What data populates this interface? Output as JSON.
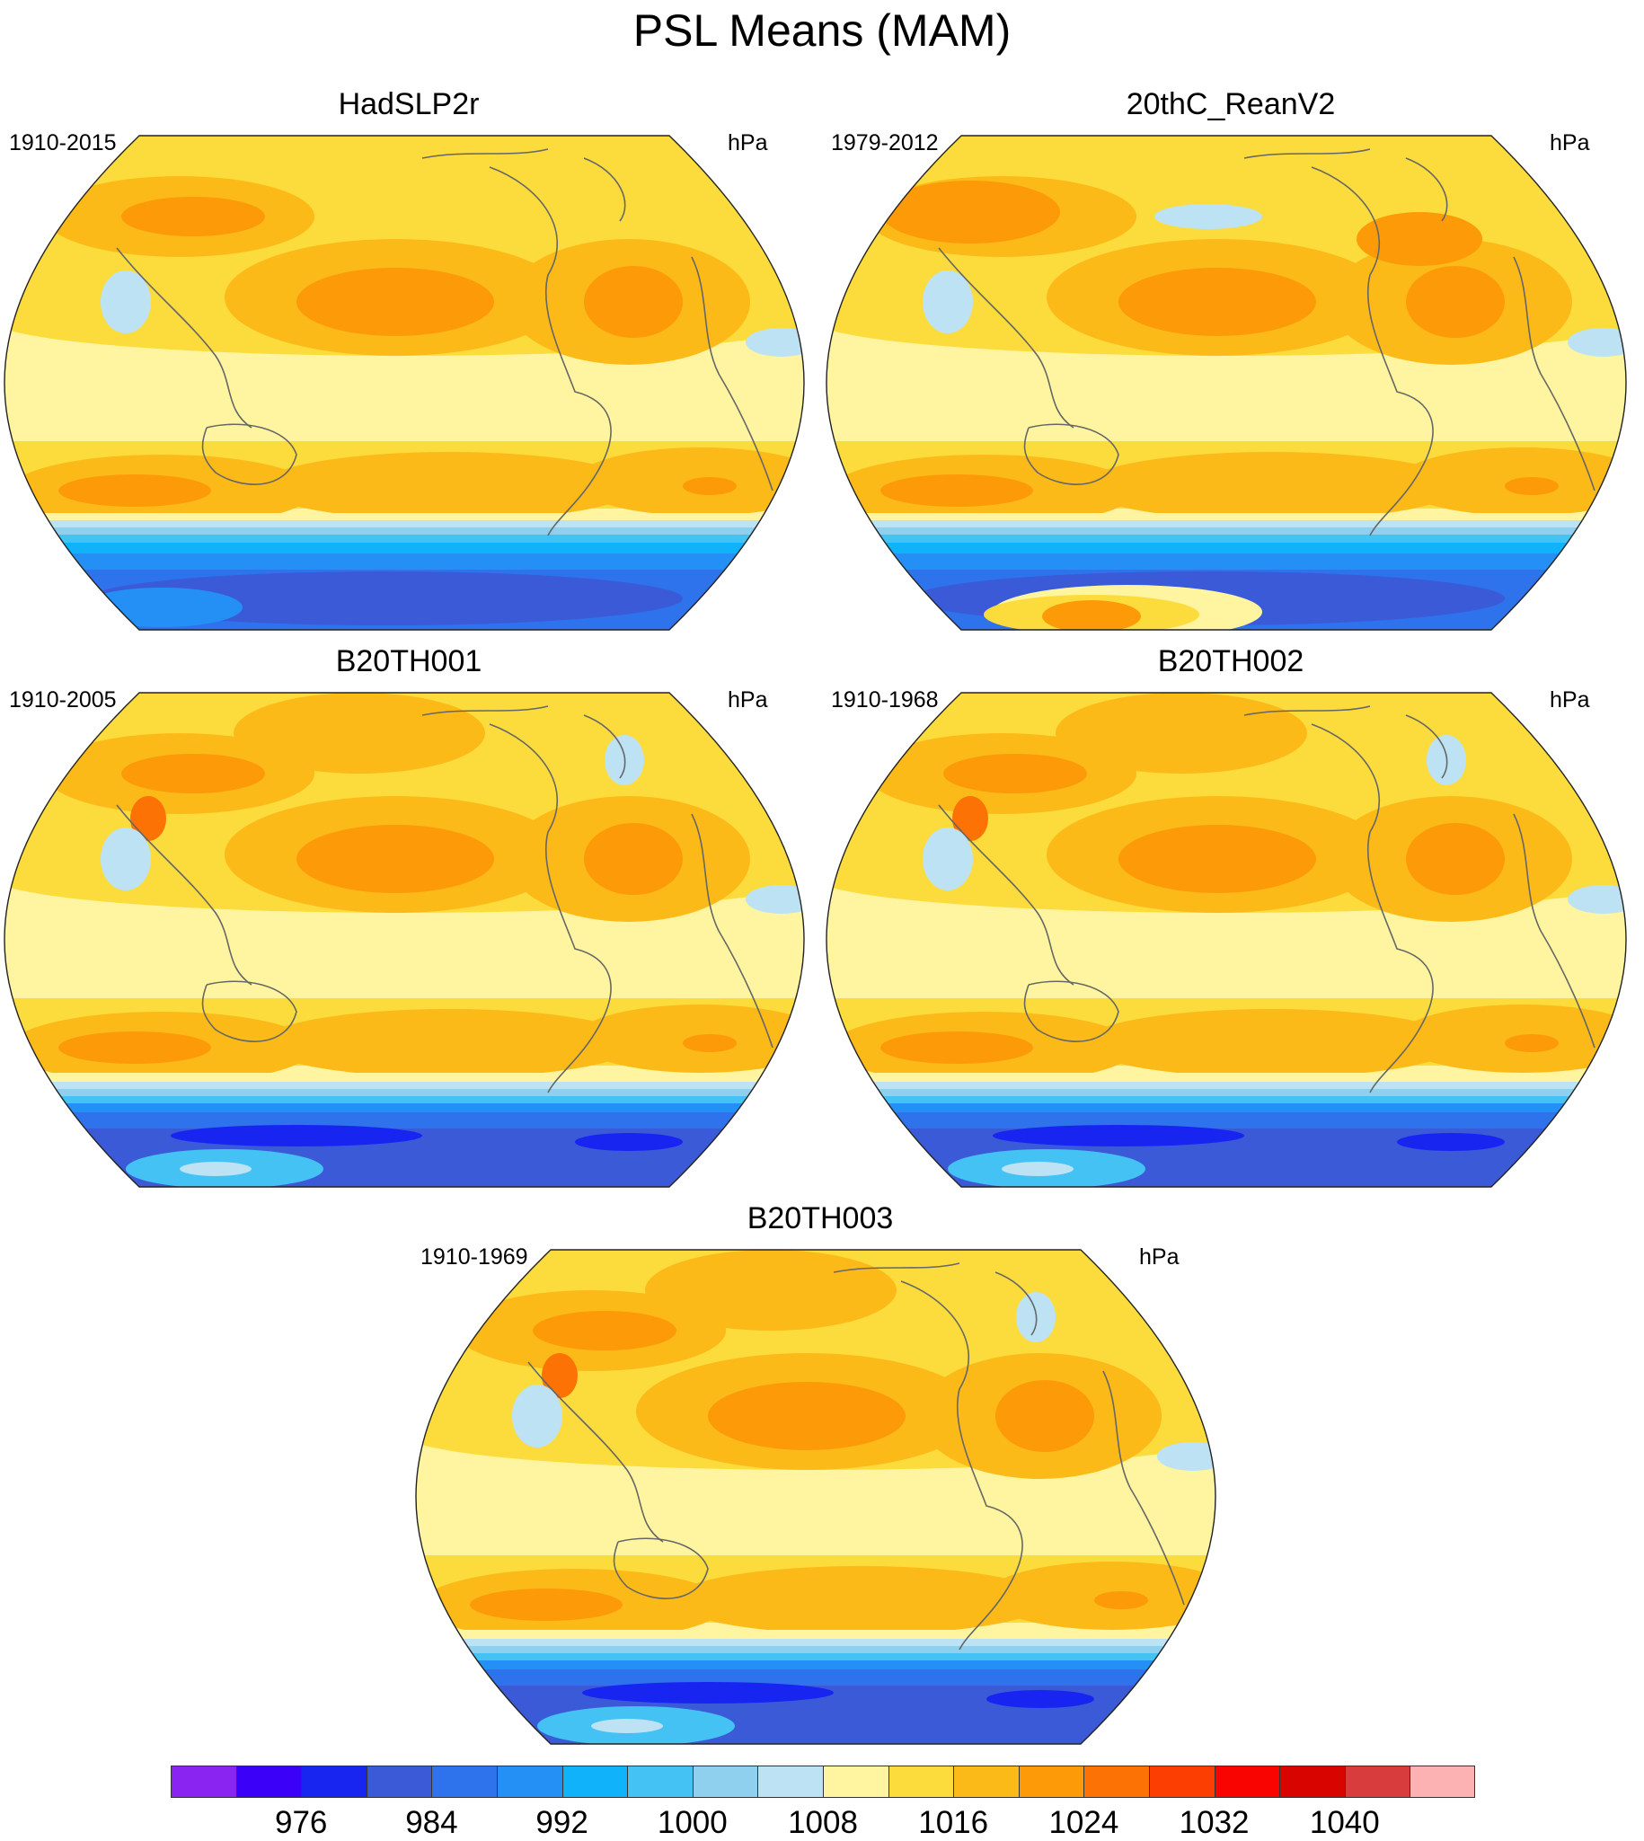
{
  "title": "PSL Means (MAM)",
  "panels": [
    {
      "title": "HadSLP2r",
      "left": "1910-2015",
      "right": "hPa"
    },
    {
      "title": "20thC_ReanV2",
      "left": "1979-2012",
      "right": "hPa"
    },
    {
      "title": "B20TH001",
      "left": "1910-2005",
      "right": "hPa"
    },
    {
      "title": "B20TH002",
      "left": "1910-1968",
      "right": "hPa"
    },
    {
      "title": "B20TH003",
      "left": "1910-1969",
      "right": "hPa"
    }
  ],
  "colorbar": {
    "colors": [
      "#8a24f0",
      "#3a00f8",
      "#1824f0",
      "#3a5ad8",
      "#2e72ec",
      "#2490f6",
      "#10b2fa",
      "#44c2f4",
      "#8ed0ee",
      "#bce2f4",
      "#fff5a0",
      "#fcdc3c",
      "#fcba18",
      "#fc9a08",
      "#fc7204",
      "#fc3e02",
      "#fa0400",
      "#d80400",
      "#d83c3c",
      "#fcb2b2"
    ],
    "labels": [
      {
        "text": "976",
        "index": 2
      },
      {
        "text": "984",
        "index": 4
      },
      {
        "text": "992",
        "index": 6
      },
      {
        "text": "1000",
        "index": 8
      },
      {
        "text": "1008",
        "index": 10
      },
      {
        "text": "1016",
        "index": 12
      },
      {
        "text": "1024",
        "index": 14
      },
      {
        "text": "1032",
        "index": 16
      },
      {
        "text": "1040",
        "index": 18
      }
    ]
  }
}
